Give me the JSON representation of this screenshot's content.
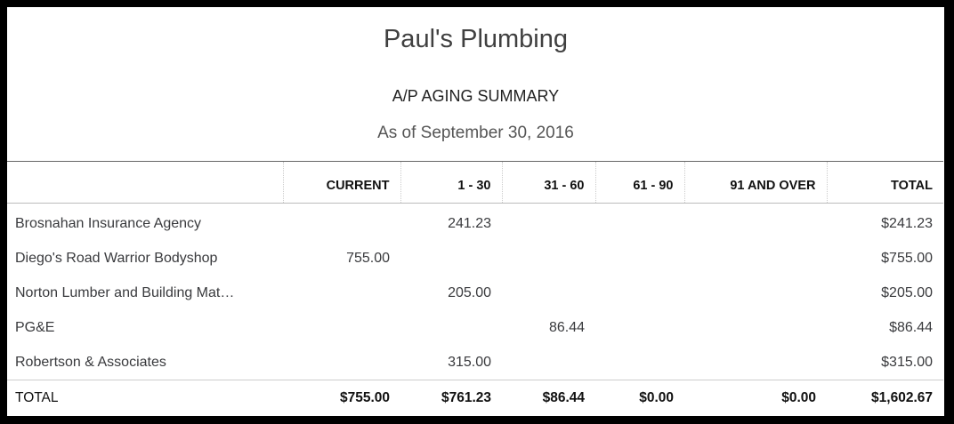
{
  "report": {
    "company": "Paul's Plumbing",
    "title": "A/P AGING SUMMARY",
    "date": "As of September 30, 2016"
  },
  "columns": [
    "",
    "CURRENT",
    "1 - 30",
    "31 - 60",
    "61 - 90",
    "91 AND OVER",
    "TOTAL"
  ],
  "rows": [
    [
      "Brosnahan Insurance Agency",
      "",
      "241.23",
      "",
      "",
      "",
      "$241.23"
    ],
    [
      "Diego's Road Warrior Bodyshop",
      "755.00",
      "",
      "",
      "",
      "",
      "$755.00"
    ],
    [
      "Norton Lumber and Building Mat…",
      "",
      "205.00",
      "",
      "",
      "",
      "$205.00"
    ],
    [
      "PG&E",
      "",
      "",
      "86.44",
      "",
      "",
      "$86.44"
    ],
    [
      "Robertson & Associates",
      "",
      "315.00",
      "",
      "",
      "",
      "$315.00"
    ]
  ],
  "total": [
    "TOTAL",
    "$755.00",
    "$761.23",
    "$86.44",
    "$0.00",
    "$0.00",
    "$1,602.67"
  ]
}
